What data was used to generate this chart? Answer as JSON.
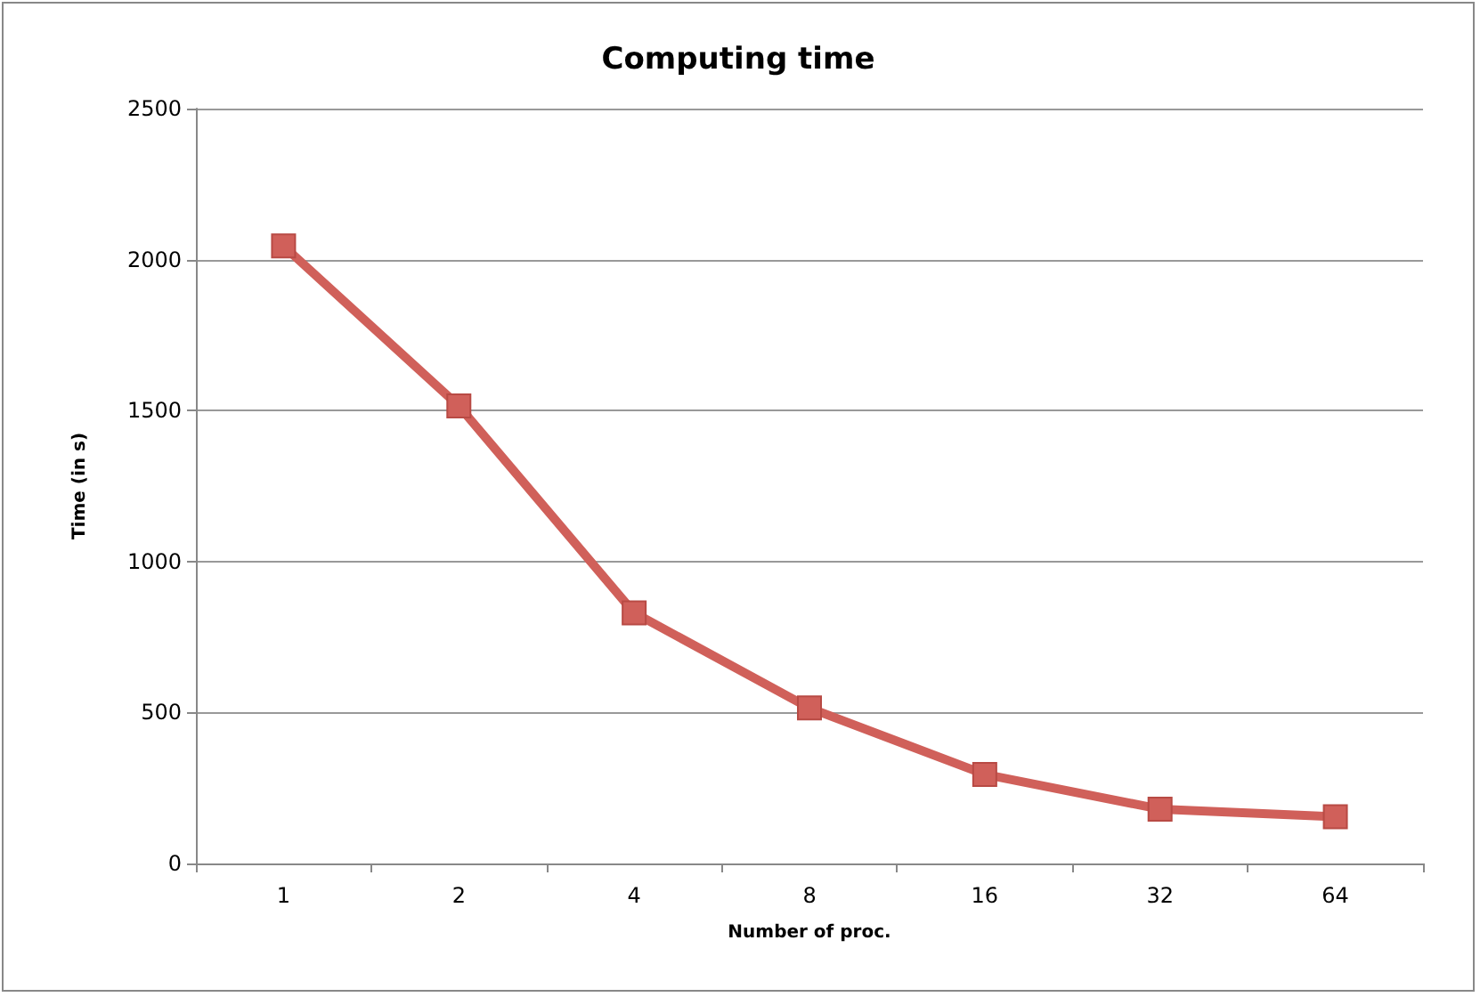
{
  "chart_data": {
    "type": "line",
    "title": "Computing time",
    "xlabel": "Number of proc.",
    "ylabel": "Time (in s)",
    "categories": [
      "1",
      "2",
      "4",
      "8",
      "16",
      "32",
      "64"
    ],
    "series": [
      {
        "color": "#d0605a",
        "values": [
          2045,
          1515,
          830,
          515,
          295,
          180,
          155
        ]
      }
    ],
    "ylim": [
      0,
      2500
    ],
    "yticks": [
      0,
      500,
      1000,
      1500,
      2000,
      2500
    ],
    "grid": "y",
    "marker": "square",
    "line_style": "solid"
  }
}
